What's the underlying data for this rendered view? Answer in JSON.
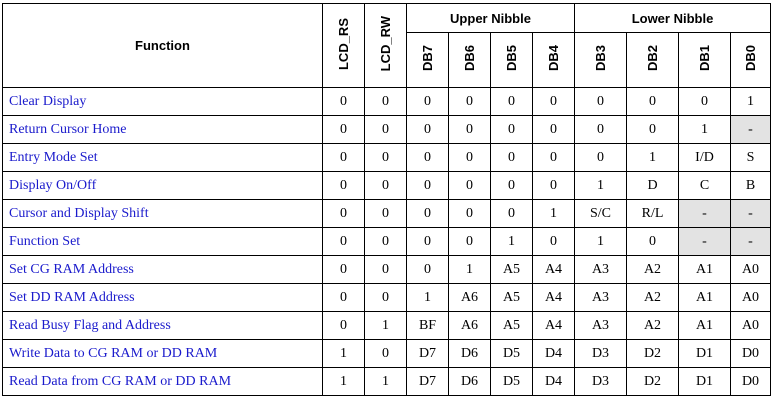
{
  "header": {
    "function": "Function",
    "lcd_rs": "LCD_RS",
    "lcd_rw": "LCD_RW",
    "upper_nibble": "Upper Nibble",
    "lower_nibble": "Lower Nibble",
    "bits": [
      "DB7",
      "DB6",
      "DB5",
      "DB4",
      "DB3",
      "DB2",
      "DB1",
      "DB0"
    ]
  },
  "table": {
    "rows": [
      [
        "Clear Display",
        "0",
        "0",
        "0",
        "0",
        "0",
        "0",
        "0",
        "0",
        "0",
        "1"
      ],
      [
        "Return Cursor Home",
        "0",
        "0",
        "0",
        "0",
        "0",
        "0",
        "0",
        "0",
        "1",
        "-"
      ],
      [
        "Entry Mode Set",
        "0",
        "0",
        "0",
        "0",
        "0",
        "0",
        "0",
        "1",
        "I/D",
        "S"
      ],
      [
        "Display On/Off",
        "0",
        "0",
        "0",
        "0",
        "0",
        "0",
        "1",
        "D",
        "C",
        "B"
      ],
      [
        "Cursor and Display Shift",
        "0",
        "0",
        "0",
        "0",
        "0",
        "1",
        "S/C",
        "R/L",
        "-",
        "-"
      ],
      [
        "Function Set",
        "0",
        "0",
        "0",
        "0",
        "1",
        "0",
        "1",
        "0",
        "-",
        "-"
      ],
      [
        "Set CG RAM Address",
        "0",
        "0",
        "0",
        "1",
        "A5",
        "A4",
        "A3",
        "A2",
        "A1",
        "A0"
      ],
      [
        "Set DD RAM Address",
        "0",
        "0",
        "1",
        "A6",
        "A5",
        "A4",
        "A3",
        "A2",
        "A1",
        "A0"
      ],
      [
        "Read Busy Flag and Address",
        "0",
        "1",
        "BF",
        "A6",
        "A5",
        "A4",
        "A3",
        "A2",
        "A1",
        "A0"
      ],
      [
        "Write Data to CG RAM or DD RAM",
        "1",
        "0",
        "D7",
        "D6",
        "D5",
        "D4",
        "D3",
        "D2",
        "D1",
        "D0"
      ],
      [
        "Read Data from CG RAM or DD RAM",
        "1",
        "1",
        "D7",
        "D6",
        "D5",
        "D4",
        "D3",
        "D2",
        "D1",
        "D0"
      ]
    ]
  }
}
